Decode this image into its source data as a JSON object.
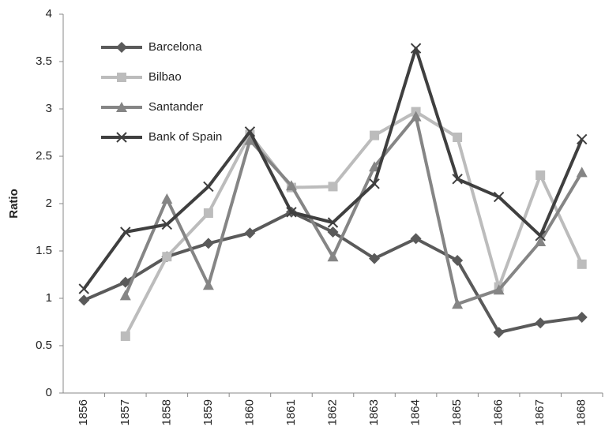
{
  "chart_data": {
    "type": "line",
    "y_label": "Ratio",
    "categories": [
      "1856",
      "1857",
      "1858",
      "1859",
      "1860",
      "1861",
      "1862",
      "1863",
      "1864",
      "1865",
      "1866",
      "1867",
      "1868"
    ],
    "ylim": [
      0,
      4
    ],
    "yticks": [
      0,
      0.5,
      1,
      1.5,
      2,
      2.5,
      3,
      3.5,
      4
    ],
    "grid": false,
    "legend": "upper-left",
    "series": [
      {
        "name": "Barcelona",
        "color": "#5a5a5a",
        "marker": "diamond",
        "values": [
          0.98,
          1.17,
          1.44,
          1.58,
          1.69,
          1.91,
          1.7,
          1.42,
          1.63,
          1.4,
          0.64,
          0.74,
          0.8
        ]
      },
      {
        "name": "Bilbao",
        "color": "#bcbcbc",
        "marker": "square",
        "values": [
          null,
          0.6,
          1.44,
          1.9,
          2.73,
          2.17,
          2.18,
          2.72,
          2.97,
          2.7,
          1.12,
          2.3,
          1.36
        ]
      },
      {
        "name": "Santander",
        "color": "#858585",
        "marker": "triangle",
        "values": [
          null,
          1.03,
          2.05,
          1.14,
          2.67,
          2.19,
          1.44,
          2.39,
          2.92,
          0.94,
          1.09,
          1.6,
          2.33
        ]
      },
      {
        "name": "Bank of Spain",
        "color": "#3f3f3f",
        "marker": "x",
        "values": [
          1.1,
          1.7,
          1.78,
          2.18,
          2.76,
          1.91,
          1.8,
          2.21,
          3.64,
          2.26,
          2.07,
          1.66,
          2.68
        ]
      }
    ]
  }
}
